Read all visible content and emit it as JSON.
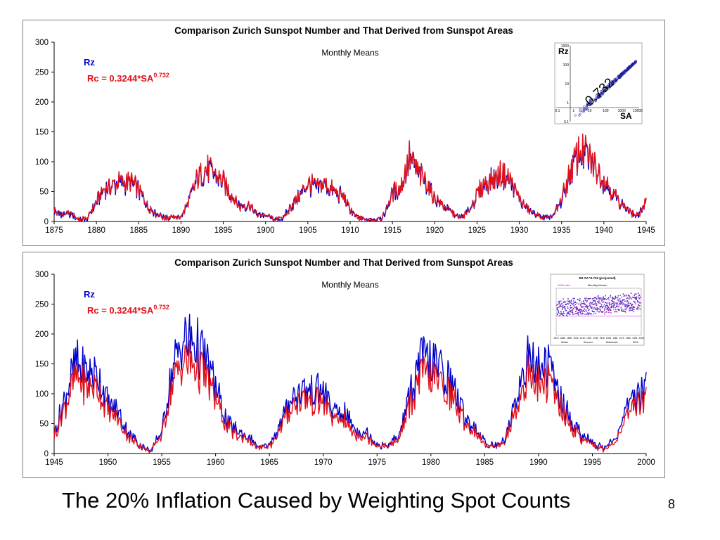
{
  "slide": {
    "title": "The 20% Inflation Caused by Weighting Spot Counts",
    "page_number": "8"
  },
  "colors": {
    "rz": "#0000cc",
    "rc": "#e0101a",
    "axis": "#000000",
    "inset_purple": "#8a1aa8",
    "inset_blue": "#4444dd"
  },
  "chart_data": [
    {
      "type": "line",
      "title": "Comparison Zurich Sunspot Number and That Derived from Sunspot Areas",
      "subtitle": "Monthly Means",
      "legend": [
        {
          "label": "Rz",
          "color": "#0000cc"
        },
        {
          "label": "Rc = 0.3244*SA",
          "superscript": "0.732",
          "color": "#e0101a"
        }
      ],
      "xlim": [
        1875,
        1945
      ],
      "ylim": [
        0,
        300
      ],
      "xticks": [
        1875,
        1880,
        1885,
        1890,
        1895,
        1900,
        1905,
        1910,
        1915,
        1920,
        1925,
        1930,
        1935,
        1940,
        1945
      ],
      "yticks": [
        0,
        50,
        100,
        150,
        200,
        250,
        300
      ],
      "series": [
        {
          "name": "Rz",
          "color": "#0000cc",
          "x": [
            1875,
            1876,
            1877,
            1878,
            1879,
            1880,
            1881,
            1882,
            1883,
            1884,
            1885,
            1886,
            1887,
            1888,
            1889,
            1890,
            1891,
            1892,
            1893,
            1894,
            1895,
            1896,
            1897,
            1898,
            1899,
            1900,
            1901,
            1902,
            1903,
            1904,
            1905,
            1906,
            1907,
            1908,
            1909,
            1910,
            1911,
            1912,
            1913,
            1914,
            1915,
            1916,
            1917,
            1918,
            1919,
            1920,
            1921,
            1922,
            1923,
            1924,
            1925,
            1926,
            1927,
            1928,
            1929,
            1930,
            1931,
            1932,
            1933,
            1934,
            1935,
            1936,
            1937,
            1938,
            1939,
            1940,
            1941,
            1942,
            1943,
            1944,
            1945
          ],
          "y": [
            17,
            11,
            12,
            3,
            6,
            32,
            55,
            60,
            64,
            64,
            52,
            26,
            13,
            7,
            6,
            7,
            36,
            73,
            85,
            78,
            64,
            42,
            26,
            27,
            12,
            10,
            3,
            5,
            24,
            42,
            63,
            54,
            62,
            49,
            44,
            19,
            6,
            4,
            1,
            10,
            47,
            57,
            104,
            81,
            64,
            38,
            26,
            14,
            6,
            17,
            44,
            64,
            69,
            78,
            65,
            36,
            21,
            11,
            6,
            9,
            36,
            80,
            114,
            110,
            89,
            68,
            48,
            31,
            16,
            10,
            33
          ]
        },
        {
          "name": "Rc = 0.3244*SA^0.732",
          "color": "#e0101a",
          "x": [
            1875,
            1876,
            1877,
            1878,
            1879,
            1880,
            1881,
            1882,
            1883,
            1884,
            1885,
            1886,
            1887,
            1888,
            1889,
            1890,
            1891,
            1892,
            1893,
            1894,
            1895,
            1896,
            1897,
            1898,
            1899,
            1900,
            1901,
            1902,
            1903,
            1904,
            1905,
            1906,
            1907,
            1908,
            1909,
            1910,
            1911,
            1912,
            1913,
            1914,
            1915,
            1916,
            1917,
            1918,
            1919,
            1920,
            1921,
            1922,
            1923,
            1924,
            1925,
            1926,
            1927,
            1928,
            1929,
            1930,
            1931,
            1932,
            1933,
            1934,
            1935,
            1936,
            1937,
            1938,
            1939,
            1940,
            1941,
            1942,
            1943,
            1944,
            1945
          ],
          "y": [
            18,
            12,
            12,
            3,
            6,
            33,
            57,
            62,
            66,
            66,
            54,
            27,
            13,
            7,
            6,
            7,
            37,
            75,
            88,
            80,
            66,
            43,
            26,
            27,
            12,
            10,
            3,
            5,
            25,
            43,
            65,
            56,
            64,
            50,
            45,
            19,
            6,
            4,
            1,
            10,
            48,
            59,
            107,
            83,
            66,
            39,
            27,
            14,
            6,
            17,
            45,
            66,
            71,
            80,
            67,
            37,
            21,
            11,
            6,
            9,
            37,
            82,
            117,
            113,
            91,
            70,
            49,
            31,
            16,
            10,
            34
          ]
        }
      ],
      "inset": {
        "type": "scatter",
        "xlabel": "SA",
        "ylabel": "Rz",
        "scale": "log-log",
        "annotation": "0.732",
        "xticks": [
          "0.1",
          "1",
          "10",
          "100",
          "1000",
          "10000"
        ],
        "yticks": [
          "0.1",
          "1",
          "10",
          "100",
          "1000"
        ]
      }
    },
    {
      "type": "line",
      "title": "Comparison Zurich Sunspot Number and That Derived from Sunspot Areas",
      "subtitle": "Monthly Means",
      "legend": [
        {
          "label": "Rz",
          "color": "#0000cc"
        },
        {
          "label": "Rc = 0.3244*SA",
          "superscript": "0.732",
          "color": "#e0101a"
        }
      ],
      "xlim": [
        1945,
        2000
      ],
      "ylim": [
        0,
        300
      ],
      "xticks": [
        1945,
        1950,
        1955,
        1960,
        1965,
        1970,
        1975,
        1980,
        1985,
        1990,
        1995,
        2000
      ],
      "yticks": [
        0,
        50,
        100,
        150,
        200,
        250,
        300
      ],
      "series": [
        {
          "name": "Rz",
          "color": "#0000cc",
          "x": [
            1945,
            1946,
            1947,
            1948,
            1949,
            1950,
            1951,
            1952,
            1953,
            1954,
            1955,
            1956,
            1957,
            1958,
            1959,
            1960,
            1961,
            1962,
            1963,
            1964,
            1965,
            1966,
            1967,
            1968,
            1969,
            1970,
            1971,
            1972,
            1973,
            1974,
            1975,
            1976,
            1977,
            1978,
            1979,
            1980,
            1981,
            1982,
            1983,
            1984,
            1985,
            1986,
            1987,
            1988,
            1989,
            1990,
            1991,
            1992,
            1993,
            1994,
            1995,
            1996,
            1997,
            1998,
            1999,
            2000
          ],
          "y": [
            33,
            93,
            151,
            136,
            135,
            84,
            69,
            31,
            14,
            4,
            38,
            142,
            190,
            185,
            159,
            112,
            54,
            38,
            28,
            10,
            15,
            47,
            94,
            106,
            106,
            105,
            67,
            69,
            38,
            35,
            16,
            13,
            28,
            93,
            155,
            155,
            140,
            116,
            67,
            46,
            18,
            14,
            29,
            100,
            158,
            142,
            146,
            94,
            55,
            30,
            18,
            9,
            21,
            64,
            93,
            120
          ]
        },
        {
          "name": "Rc = 0.3244*SA^0.732",
          "color": "#e0101a",
          "x": [
            1945,
            1946,
            1947,
            1948,
            1949,
            1950,
            1951,
            1952,
            1953,
            1954,
            1955,
            1956,
            1957,
            1958,
            1959,
            1960,
            1961,
            1962,
            1963,
            1964,
            1965,
            1966,
            1967,
            1968,
            1969,
            1970,
            1971,
            1972,
            1973,
            1974,
            1975,
            1976,
            1977,
            1978,
            1979,
            1980,
            1981,
            1982,
            1983,
            1984,
            1985,
            1986,
            1987,
            1988,
            1989,
            1990,
            1991,
            1992,
            1993,
            1994,
            1995,
            1996,
            1997,
            1998,
            1999,
            2000
          ],
          "y": [
            29,
            80,
            125,
            112,
            110,
            70,
            57,
            26,
            12,
            3,
            32,
            118,
            155,
            150,
            130,
            92,
            45,
            31,
            23,
            8,
            12,
            39,
            80,
            90,
            88,
            86,
            55,
            57,
            31,
            29,
            13,
            11,
            23,
            77,
            128,
            128,
            115,
            96,
            55,
            38,
            15,
            12,
            24,
            82,
            130,
            117,
            120,
            78,
            46,
            25,
            15,
            7,
            17,
            53,
            77,
            98
          ]
        }
      ],
      "inset": {
        "type": "scatter",
        "title": "RZ·SA^0.732 (projected)",
        "subtitle": "Monthly Means",
        "xticks": [
          "1875",
          "1885",
          "1895",
          "1905",
          "1915",
          "1925",
          "1935",
          "1945",
          "1955",
          "1965",
          "1975",
          "1985",
          "1995",
          "2005"
        ],
        "legend": [
          "1000 ratio"
        ],
        "region_labels": [
          "Wolfer",
          "Brunner",
          "Waldmeier",
          "SIDC"
        ]
      }
    }
  ]
}
